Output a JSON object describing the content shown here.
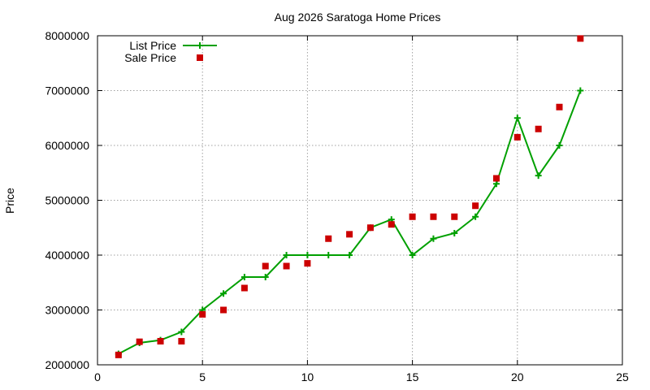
{
  "chart_data": {
    "type": "line",
    "title": "Aug 2026 Saratoga Home Prices",
    "xlabel": "",
    "ylabel": "Price",
    "xlim": [
      0,
      25
    ],
    "ylim": [
      2000000,
      8000000
    ],
    "xticks": [
      0,
      5,
      10,
      15,
      20,
      25
    ],
    "yticks": [
      2000000,
      3000000,
      4000000,
      5000000,
      6000000,
      7000000,
      8000000
    ],
    "xtick_labels": [
      "0",
      "5",
      "10",
      "15",
      "20",
      "25"
    ],
    "ytick_labels": [
      "2000000",
      "3000000",
      "4000000",
      "5000000",
      "6000000",
      "7000000",
      "8000000"
    ],
    "grid": true,
    "legend_position": "top-left",
    "series": [
      {
        "name": "List Price",
        "style": "line+cross",
        "color": "#00a000",
        "x": [
          1,
          2,
          3,
          4,
          5,
          6,
          7,
          8,
          9,
          10,
          11,
          12,
          13,
          14,
          15,
          16,
          17,
          18,
          19,
          20,
          21,
          22,
          23
        ],
        "y": [
          2200000,
          2400000,
          2450000,
          2600000,
          3000000,
          3300000,
          3600000,
          3600000,
          4000000,
          4000000,
          4000000,
          4000000,
          4500000,
          4650000,
          4000000,
          4300000,
          4400000,
          4700000,
          5300000,
          6500000,
          5450000,
          6000000,
          7000000
        ]
      },
      {
        "name": "Sale Price",
        "style": "square",
        "color": "#cc0000",
        "x": [
          1,
          2,
          3,
          4,
          5,
          6,
          7,
          8,
          9,
          10,
          11,
          12,
          13,
          14,
          15,
          16,
          17,
          18,
          19,
          20,
          21,
          22,
          23
        ],
        "y": [
          2180000,
          2420000,
          2430000,
          2430000,
          2920000,
          3000000,
          3400000,
          3800000,
          3800000,
          3850000,
          4300000,
          4380000,
          4500000,
          4560000,
          4700000,
          4700000,
          4700000,
          4900000,
          5400000,
          6150000,
          6300000,
          6700000,
          7950000
        ]
      }
    ]
  }
}
